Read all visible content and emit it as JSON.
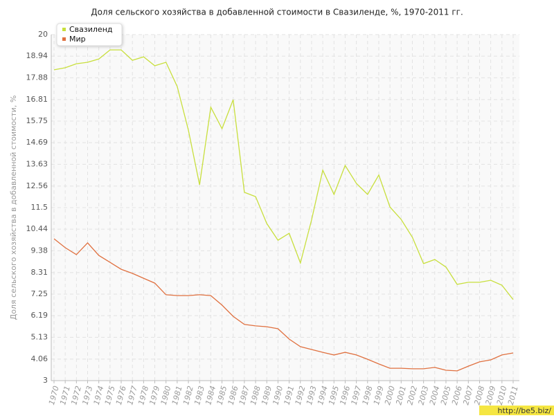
{
  "chart_data": {
    "type": "line",
    "title": "Доля сельского хозяйства в добавленной стоимости в Свазиленде, %, 1970-2011 гг.",
    "y_label": "Доля сельского хозяйства в добавленной стоимости, %",
    "watermark": "http://be5.biz/",
    "legend": "top-left",
    "grid": true,
    "categories": [
      "1970",
      "1971",
      "1972",
      "1973",
      "1974",
      "1975",
      "1976",
      "1977",
      "1978",
      "1979",
      "1980",
      "1981",
      "1982",
      "1983",
      "1984",
      "1985",
      "1986",
      "1987",
      "1988",
      "1989",
      "1990",
      "1991",
      "1992",
      "1993",
      "1994",
      "1995",
      "1996",
      "1997",
      "1998",
      "1999",
      "2000",
      "2001",
      "2002",
      "2003",
      "2004",
      "2005",
      "2006",
      "2007",
      "2008",
      "2009",
      "2010",
      "2011"
    ],
    "series": [
      {
        "name": "Свазиленд",
        "color": "#c8df3c",
        "values": [
          18.27,
          18.37,
          18.57,
          18.64,
          18.8,
          19.25,
          19.25,
          18.74,
          18.91,
          18.47,
          18.64,
          17.45,
          15.31,
          12.62,
          16.43,
          15.38,
          16.8,
          12.25,
          12.04,
          10.72,
          9.9,
          10.24,
          8.78,
          10.89,
          13.34,
          12.15,
          13.57,
          12.69,
          12.15,
          13.1,
          11.53,
          10.92,
          10.04,
          8.75,
          8.95,
          8.58,
          7.73,
          7.83,
          7.83,
          7.93,
          7.69,
          6.98
        ]
      },
      {
        "name": "Мир",
        "color": "#e0703f",
        "values": [
          9.97,
          9.53,
          9.19,
          9.77,
          9.15,
          8.81,
          8.47,
          8.27,
          8.03,
          7.79,
          7.22,
          7.18,
          7.18,
          7.22,
          7.18,
          6.71,
          6.16,
          5.76,
          5.69,
          5.65,
          5.55,
          5.04,
          4.67,
          4.53,
          4.39,
          4.26,
          4.39,
          4.26,
          4.05,
          3.82,
          3.61,
          3.61,
          3.58,
          3.58,
          3.65,
          3.51,
          3.48,
          3.71,
          3.92,
          4.02,
          4.26,
          4.36
        ]
      }
    ],
    "ylim": [
      3,
      20
    ],
    "yticks": [
      3,
      4.06,
      5.13,
      6.19,
      7.25,
      8.31,
      9.38,
      10.44,
      11.5,
      12.56,
      13.63,
      14.69,
      15.75,
      16.81,
      17.88,
      18.94,
      20
    ]
  }
}
